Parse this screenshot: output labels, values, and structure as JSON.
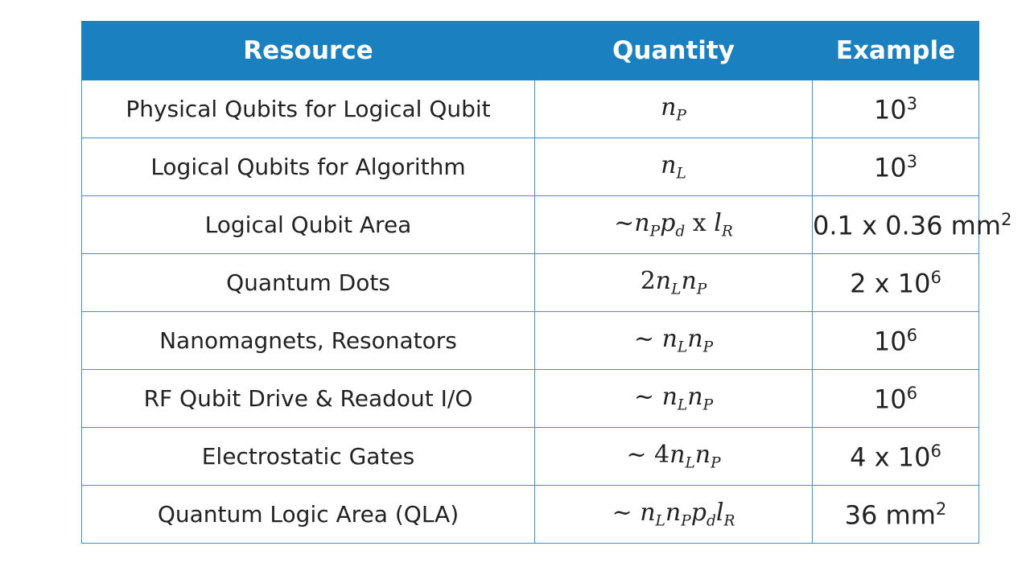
{
  "table": {
    "headers": {
      "resource": "Resource",
      "quantity": "Quantity",
      "example": "Example"
    },
    "rows": [
      {
        "resource": "Physical Qubits for Logical Qubit",
        "quantity": {
          "prefix": "",
          "parts": [
            {
              "v": "n",
              "s": "P"
            }
          ]
        },
        "example": {
          "base": "10",
          "sup": "3"
        }
      },
      {
        "resource": "Logical Qubits for Algorithm",
        "quantity": {
          "prefix": "",
          "parts": [
            {
              "v": "n",
              "s": "L"
            }
          ]
        },
        "example": {
          "base": "10",
          "sup": "3"
        }
      },
      {
        "resource": "Logical Qubit Area",
        "quantity": {
          "prefix": "~",
          "parts": [
            {
              "v": "n",
              "s": "P"
            },
            {
              "v": "p",
              "s": "d"
            },
            {
              "t": " x "
            },
            {
              "v": "l",
              "s": "R"
            }
          ]
        },
        "example": {
          "base": "0.1 x 0.36 mm",
          "sup": "2"
        }
      },
      {
        "resource": "Quantum Dots",
        "quantity": {
          "prefix": "2",
          "parts": [
            {
              "v": "n",
              "s": "L"
            },
            {
              "v": "n",
              "s": "P"
            }
          ]
        },
        "example": {
          "base": "2 x 10",
          "sup": "6"
        }
      },
      {
        "resource": "Nanomagnets, Resonators",
        "quantity": {
          "prefix": "~ ",
          "parts": [
            {
              "v": "n",
              "s": "L"
            },
            {
              "v": "n",
              "s": "P"
            }
          ]
        },
        "example": {
          "base": "10",
          "sup": "6"
        }
      },
      {
        "resource": "RF Qubit Drive & Readout I/O",
        "quantity": {
          "prefix": "~ ",
          "parts": [
            {
              "v": "n",
              "s": "L"
            },
            {
              "v": "n",
              "s": "P"
            }
          ]
        },
        "example": {
          "base": "10",
          "sup": "6"
        }
      },
      {
        "resource": "Electrostatic Gates",
        "quantity": {
          "prefix": "~ 4",
          "parts": [
            {
              "v": "n",
              "s": "L"
            },
            {
              "v": "n",
              "s": "P"
            }
          ]
        },
        "example": {
          "base": "4 x 10",
          "sup": "6"
        }
      },
      {
        "resource": "Quantum Logic Area (QLA)",
        "quantity": {
          "prefix": "~ ",
          "parts": [
            {
              "v": "n",
              "s": "L"
            },
            {
              "v": "n",
              "s": "P"
            },
            {
              "v": "p",
              "s": "d"
            },
            {
              "v": "l",
              "s": "R"
            }
          ]
        },
        "example": {
          "base": "36 mm",
          "sup": "2"
        }
      }
    ]
  },
  "colors": {
    "header_bg": "#1a80bf",
    "border": "#3b92cf",
    "header_text": "#ffffff",
    "body_text": "#222222"
  }
}
